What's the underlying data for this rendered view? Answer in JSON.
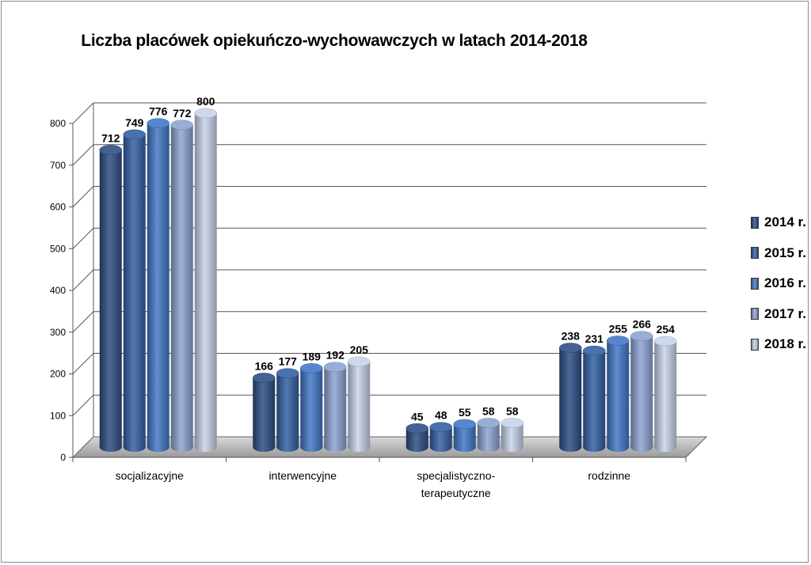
{
  "chart_data": {
    "type": "bar",
    "title": "Liczba placówek opiekuńczo-wychowawczych w latach 2014-2018",
    "categories": [
      [
        "socjalizacyjne"
      ],
      [
        "interwencyjne"
      ],
      [
        "specjalistyczno-",
        "terapeutyczne"
      ],
      [
        "rodzinne"
      ]
    ],
    "series": [
      {
        "name": "2014 r.",
        "values": [
          712,
          166,
          45,
          238
        ],
        "color": "#2f4f86"
      },
      {
        "name": "2015 r.",
        "values": [
          749,
          177,
          48,
          231
        ],
        "color": "#3461a5"
      },
      {
        "name": "2016 r.",
        "values": [
          776,
          189,
          55,
          255
        ],
        "color": "#4379c7"
      },
      {
        "name": "2017 r.",
        "values": [
          772,
          192,
          58,
          266
        ],
        "color": "#8ea5d3"
      },
      {
        "name": "2018 r.",
        "values": [
          800,
          205,
          58,
          254
        ],
        "color": "#c9d4eb"
      }
    ],
    "y_ticks": [
      "0",
      "100",
      "200",
      "300",
      "400",
      "500",
      "600",
      "700",
      "800"
    ],
    "ylim": [
      0,
      800
    ],
    "legend_position": "right",
    "grid": true,
    "style": "3d-cylinder"
  }
}
